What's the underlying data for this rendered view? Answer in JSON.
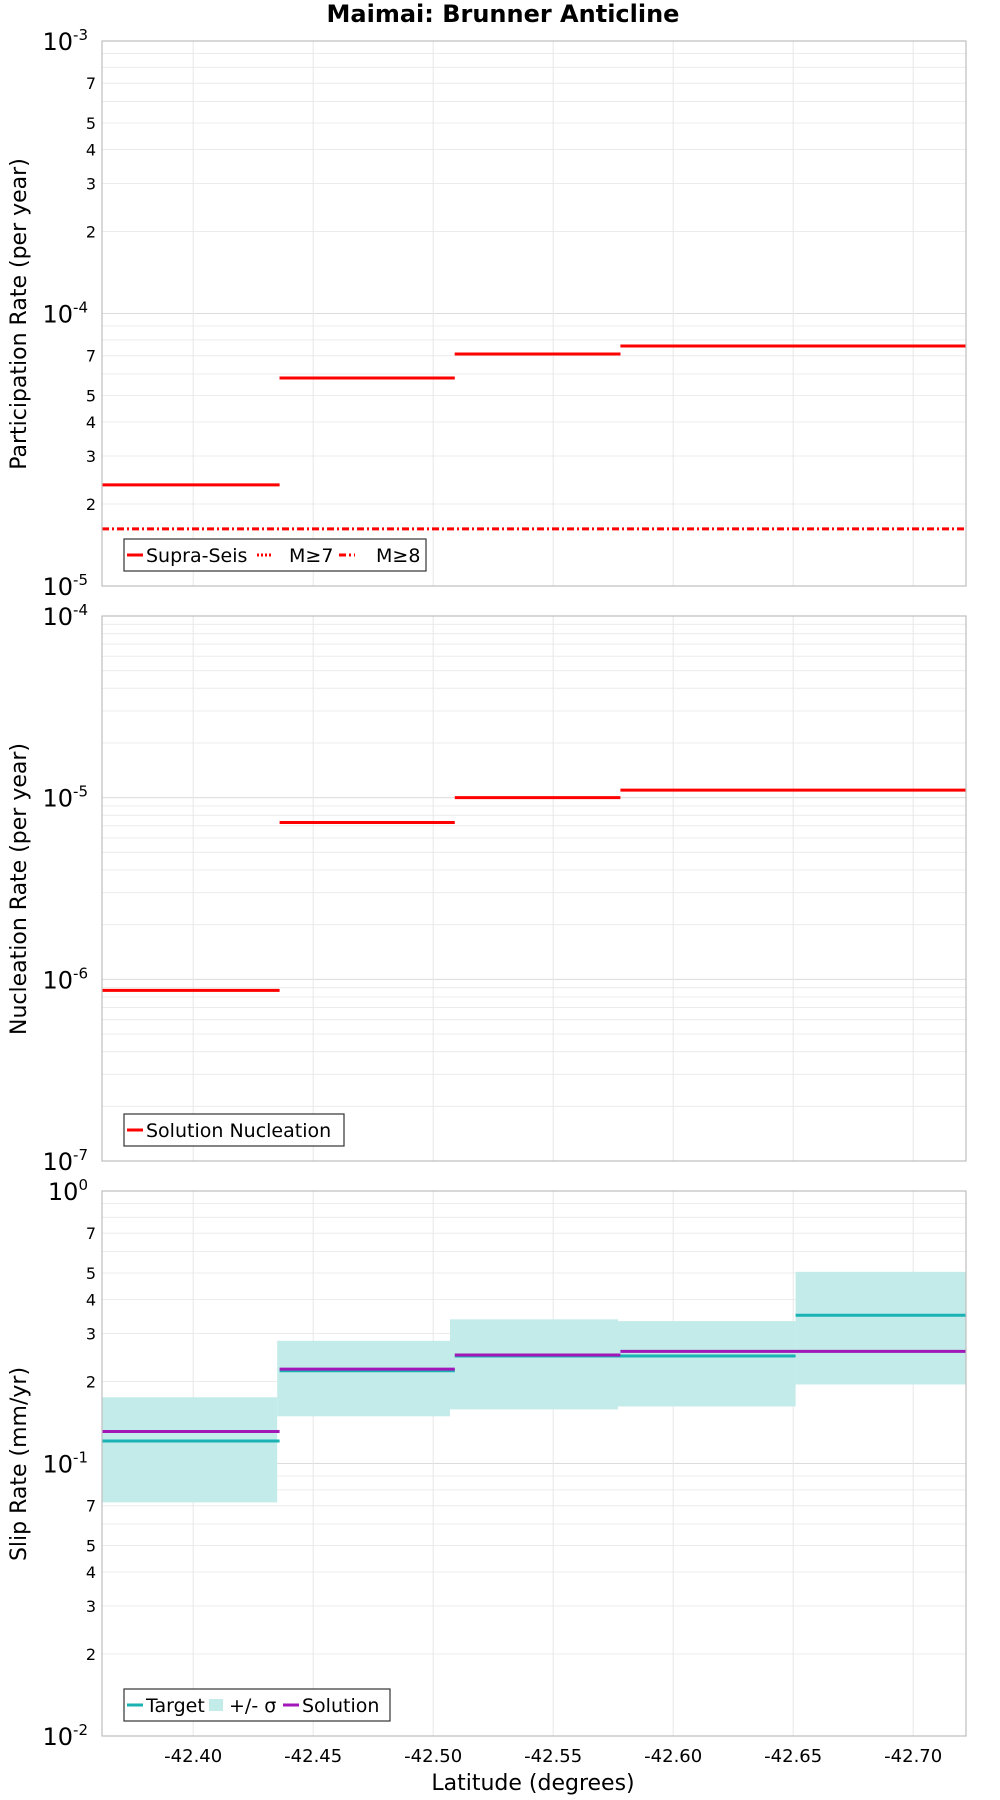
{
  "title": "Maimai: Brunner Anticline",
  "x_axis": {
    "label": "Latitude (degrees)",
    "range": [
      -42.362,
      -42.722
    ],
    "ticks": [
      -42.4,
      -42.45,
      -42.5,
      -42.55,
      -42.6,
      -42.65,
      -42.7
    ],
    "tick_labels": [
      "-42.40",
      "-42.45",
      "-42.50",
      "-42.55",
      "-42.60",
      "-42.65",
      "-42.70"
    ]
  },
  "chart_data": [
    {
      "type": "line",
      "name": "participation",
      "ylabel": "Participation Rate (per year)",
      "yscale": "log",
      "ylim_exp": [
        -5,
        -3
      ],
      "major_ticks": [
        {
          "base": "10",
          "exp": "-5"
        },
        {
          "base": "10",
          "exp": "-4"
        },
        {
          "base": "10",
          "exp": "-3"
        }
      ],
      "minor_tick_labels": [
        "2",
        "3",
        "4",
        "5",
        "7"
      ],
      "series": [
        {
          "name": "Supra-Seis",
          "color": "#ff0000",
          "style": "solid",
          "segments": [
            {
              "x": [
                -42.362,
                -42.436
              ],
              "y": 2.35e-05
            },
            {
              "x": [
                -42.436,
                -42.509
              ],
              "y": 5.8e-05
            },
            {
              "x": [
                -42.509,
                -42.578
              ],
              "y": 7.1e-05
            },
            {
              "x": [
                -42.578,
                -42.722
              ],
              "y": 7.6e-05
            }
          ]
        },
        {
          "name": "M≥7",
          "color": "#ff0000",
          "style": "dotted",
          "segments": [
            {
              "x": [
                -42.436,
                -42.509
              ],
              "y": 5.8e-05
            },
            {
              "x": [
                -42.509,
                -42.578
              ],
              "y": 7.1e-05
            }
          ]
        },
        {
          "name": "M≥8",
          "color": "#ff0000",
          "style": "dashdot",
          "segments": [
            {
              "x": [
                -42.362,
                -42.722
              ],
              "y": 1.62e-05
            }
          ]
        }
      ],
      "legend": [
        "Supra-Seis",
        "M≥7",
        "M≥8"
      ]
    },
    {
      "type": "line",
      "name": "nucleation",
      "ylabel": "Nucleation Rate (per year)",
      "yscale": "log",
      "ylim_exp": [
        -7,
        -4
      ],
      "major_ticks": [
        {
          "base": "10",
          "exp": "-7"
        },
        {
          "base": "10",
          "exp": "-6"
        },
        {
          "base": "10",
          "exp": "-5"
        },
        {
          "base": "10",
          "exp": "-4"
        }
      ],
      "minor_tick_labels": [],
      "series": [
        {
          "name": "Solution Nucleation",
          "color": "#ff0000",
          "style": "solid",
          "segments": [
            {
              "x": [
                -42.362,
                -42.436
              ],
              "y": 8.7e-07
            },
            {
              "x": [
                -42.436,
                -42.509
              ],
              "y": 7.3e-06
            },
            {
              "x": [
                -42.509,
                -42.578
              ],
              "y": 1e-05
            },
            {
              "x": [
                -42.578,
                -42.722
              ],
              "y": 1.1e-05
            }
          ]
        }
      ],
      "legend": [
        "Solution Nucleation"
      ]
    },
    {
      "type": "line",
      "name": "slip",
      "ylabel": "Slip Rate (mm/yr)",
      "yscale": "log",
      "ylim_exp": [
        -2,
        0
      ],
      "major_ticks": [
        {
          "base": "10",
          "exp": "-2"
        },
        {
          "base": "10",
          "exp": "-1"
        },
        {
          "base": "10",
          "exp": "0"
        }
      ],
      "minor_tick_labels": [
        "2",
        "3",
        "4",
        "5",
        "7"
      ],
      "bands": [
        {
          "name": "+/- σ",
          "color": "#c2ebea",
          "segments": [
            {
              "x": [
                -42.362,
                -42.435
              ],
              "low": 0.072,
              "high": 0.175
            },
            {
              "x": [
                -42.435,
                -42.507
              ],
              "low": 0.149,
              "high": 0.282
            },
            {
              "x": [
                -42.507,
                -42.577
              ],
              "low": 0.158,
              "high": 0.338
            },
            {
              "x": [
                -42.577,
                -42.651
              ],
              "low": 0.162,
              "high": 0.333
            },
            {
              "x": [
                -42.651,
                -42.722
              ],
              "low": 0.195,
              "high": 0.505
            }
          ]
        }
      ],
      "series": [
        {
          "name": "Target",
          "color": "#1ab2b2",
          "style": "solid",
          "segments": [
            {
              "x": [
                -42.362,
                -42.436
              ],
              "y": 0.121
            },
            {
              "x": [
                -42.436,
                -42.509
              ],
              "y": 0.219
            },
            {
              "x": [
                -42.509,
                -42.578
              ],
              "y": 0.248
            },
            {
              "x": [
                -42.578,
                -42.651
              ],
              "y": 0.248
            },
            {
              "x": [
                -42.651,
                -42.722
              ],
              "y": 0.35
            }
          ]
        },
        {
          "name": "Solution",
          "color": "#a117b8",
          "style": "solid",
          "segments": [
            {
              "x": [
                -42.362,
                -42.436
              ],
              "y": 0.131
            },
            {
              "x": [
                -42.436,
                -42.509
              ],
              "y": 0.222
            },
            {
              "x": [
                -42.509,
                -42.578
              ],
              "y": 0.25
            },
            {
              "x": [
                -42.578,
                -42.722
              ],
              "y": 0.258
            }
          ]
        }
      ],
      "legend": [
        "Target",
        "+/- σ",
        "Solution"
      ]
    }
  ]
}
